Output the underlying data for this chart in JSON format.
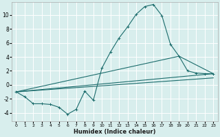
{
  "title": "",
  "xlabel": "Humidex (Indice chaleur)",
  "background_color": "#d8eeed",
  "grid_color": "#ffffff",
  "line_color": "#1a6b6b",
  "xlim": [
    -0.5,
    23.5
  ],
  "ylim": [
    -5.2,
    11.8
  ],
  "yticks": [
    -4,
    -2,
    0,
    2,
    4,
    6,
    8,
    10
  ],
  "xticks": [
    0,
    1,
    2,
    3,
    4,
    5,
    6,
    7,
    8,
    9,
    10,
    11,
    12,
    13,
    14,
    15,
    16,
    17,
    18,
    19,
    20,
    21,
    22,
    23
  ],
  "series_main": {
    "x": [
      0,
      1,
      2,
      3,
      4,
      5,
      6,
      7,
      8,
      9,
      10,
      11,
      12,
      13,
      14,
      15,
      16,
      17,
      18,
      19,
      20,
      21,
      22,
      23
    ],
    "y": [
      -1.0,
      -1.7,
      -2.7,
      -2.7,
      -2.8,
      -3.2,
      -4.2,
      -3.5,
      -0.9,
      -2.2,
      2.4,
      4.7,
      6.7,
      8.3,
      10.1,
      11.2,
      11.5,
      9.9,
      5.8,
      4.1,
      2.0,
      1.7,
      1.6,
      1.6
    ]
  },
  "series_line2": {
    "x": [
      0,
      23
    ],
    "y": [
      -1.0,
      1.6
    ]
  },
  "series_line3": {
    "x": [
      0,
      23
    ],
    "y": [
      -1.0,
      1.0
    ]
  },
  "series_line4": {
    "x": [
      0,
      19,
      23
    ],
    "y": [
      -1.0,
      4.1,
      1.6
    ]
  },
  "figsize": [
    3.2,
    2.0
  ],
  "dpi": 100
}
